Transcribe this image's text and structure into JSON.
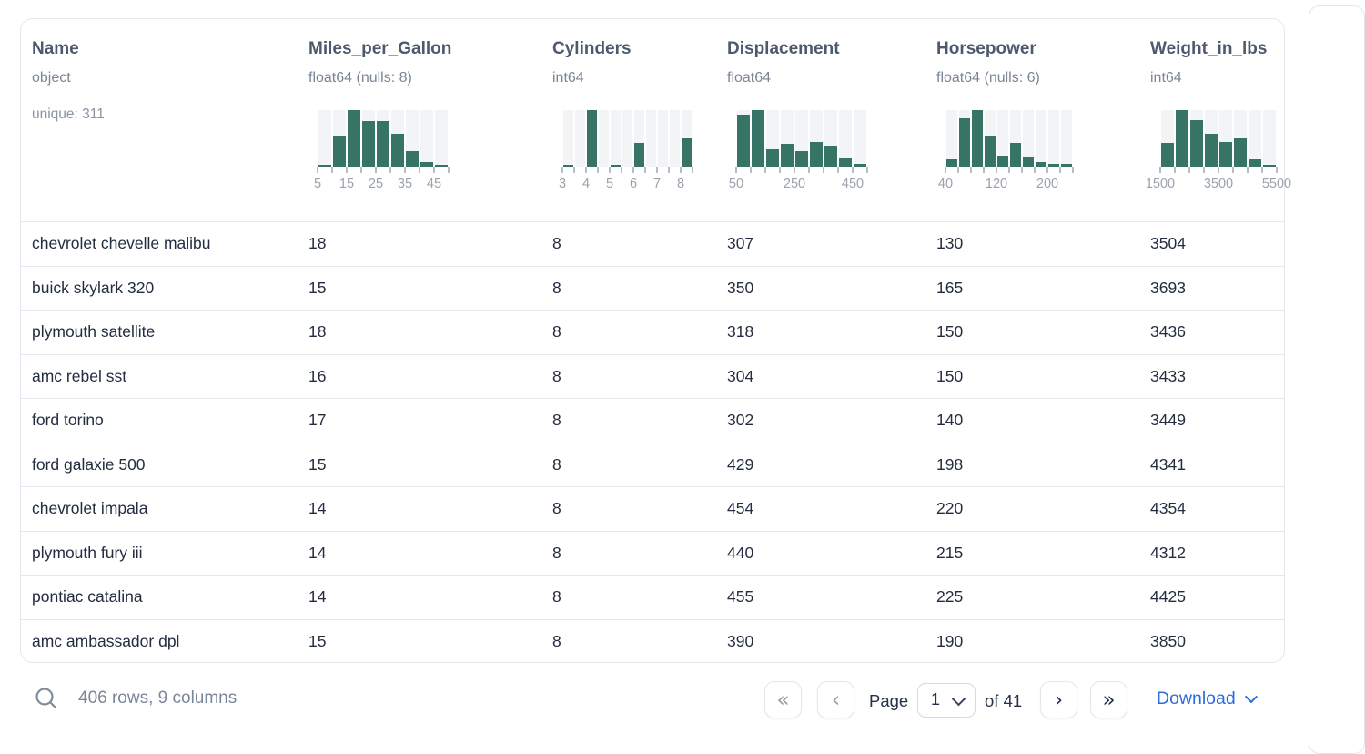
{
  "table": {
    "columns": [
      {
        "name": "Name",
        "dtype": "object",
        "extra": "unique: 311",
        "histogram": null
      },
      {
        "name": "Miles_per_Gallon",
        "dtype": "float64 (nulls: 8)",
        "extra": null,
        "histogram": {
          "type": "bar",
          "bars": [
            0.03,
            0.55,
            1.0,
            0.8,
            0.8,
            0.58,
            0.28,
            0.08,
            0.02
          ],
          "tick_labels": [
            {
              "i": 0,
              "t": "5"
            },
            {
              "i": 2,
              "t": "15"
            },
            {
              "i": 4,
              "t": "25"
            },
            {
              "i": 6,
              "t": "35"
            },
            {
              "i": 8,
              "t": "45"
            }
          ]
        }
      },
      {
        "name": "Cylinders",
        "dtype": "int64",
        "extra": null,
        "histogram": {
          "type": "bar",
          "bars": [
            0.04,
            0,
            1.0,
            0,
            0.03,
            0,
            0.42,
            0,
            0,
            0,
            0.52
          ],
          "tick_labels": [
            {
              "i": 0,
              "t": "3"
            },
            {
              "i": 2,
              "t": "4"
            },
            {
              "i": 4,
              "t": "5"
            },
            {
              "i": 6,
              "t": "6"
            },
            {
              "i": 8,
              "t": "7"
            },
            {
              "i": 10,
              "t": "8"
            }
          ]
        }
      },
      {
        "name": "Displacement",
        "dtype": "float64",
        "extra": null,
        "histogram": {
          "type": "bar",
          "bars": [
            0.92,
            1.0,
            0.31,
            0.4,
            0.27,
            0.44,
            0.37,
            0.16,
            0.05
          ],
          "tick_labels": [
            {
              "i": 0,
              "t": "50"
            },
            {
              "i": 4,
              "t": "250"
            },
            {
              "i": 8,
              "t": "450"
            }
          ]
        }
      },
      {
        "name": "Horsepower",
        "dtype": "float64 (nulls: 6)",
        "extra": null,
        "histogram": {
          "type": "bar",
          "bars": [
            0.13,
            0.85,
            1.0,
            0.55,
            0.19,
            0.42,
            0.17,
            0.08,
            0.05,
            0.05
          ],
          "tick_labels": [
            {
              "i": 0,
              "t": "40"
            },
            {
              "i": 4,
              "t": "120"
            },
            {
              "i": 8,
              "t": "200"
            }
          ]
        }
      },
      {
        "name": "Weight_in_lbs",
        "dtype": "int64",
        "extra": null,
        "histogram": {
          "type": "bar",
          "bars": [
            0.42,
            1.0,
            0.82,
            0.58,
            0.44,
            0.5,
            0.13,
            0.02
          ],
          "tick_labels": [
            {
              "i": 0,
              "t": "1500"
            },
            {
              "i": 4,
              "t": "3500"
            },
            {
              "i": 8,
              "t": "5500"
            }
          ]
        }
      }
    ],
    "rows": [
      [
        "chevrolet chevelle malibu",
        "18",
        "8",
        "307",
        "130",
        "3504"
      ],
      [
        "buick skylark 320",
        "15",
        "8",
        "350",
        "165",
        "3693"
      ],
      [
        "plymouth satellite",
        "18",
        "8",
        "318",
        "150",
        "3436"
      ],
      [
        "amc rebel sst",
        "16",
        "8",
        "304",
        "150",
        "3433"
      ],
      [
        "ford torino",
        "17",
        "8",
        "302",
        "140",
        "3449"
      ],
      [
        "ford galaxie 500",
        "15",
        "8",
        "429",
        "198",
        "4341"
      ],
      [
        "chevrolet impala",
        "14",
        "8",
        "454",
        "220",
        "4354"
      ],
      [
        "plymouth fury iii",
        "14",
        "8",
        "440",
        "215",
        "4312"
      ],
      [
        "pontiac catalina",
        "14",
        "8",
        "455",
        "225",
        "4425"
      ],
      [
        "amc ambassador dpl",
        "15",
        "8",
        "390",
        "190",
        "3850"
      ]
    ]
  },
  "footer": {
    "summary": "406 rows, 9 columns",
    "pagination": {
      "first_icon": "«",
      "prev_icon": "‹",
      "next_icon": "›",
      "last_icon": "»",
      "page_label": "Page",
      "current_page": "1",
      "of_label": "of 41"
    },
    "download_label": "Download"
  },
  "colors": {
    "bar_green": "#367565",
    "slot_bg": "#f2f4f5",
    "header_text": "#4d5a6d",
    "row_text": "#232d3f",
    "muted_text": "#7b8798",
    "dark_text": "#273149",
    "download_blue": "#2b6bdf",
    "border": "#e3e7ed"
  }
}
